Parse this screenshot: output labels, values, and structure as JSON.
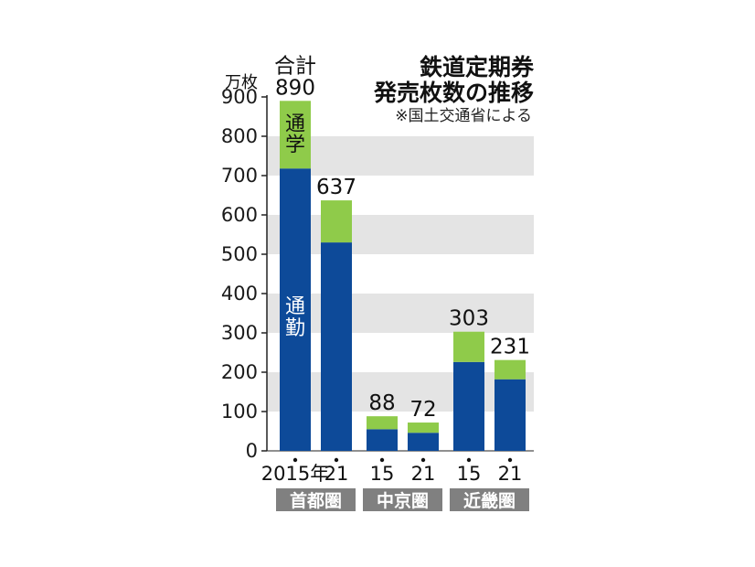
{
  "chart_data": {
    "type": "bar",
    "stacked": true,
    "title": [
      "鉄道定期券",
      "発売枚数の推移"
    ],
    "source_note": "※国土交通省による",
    "unit": "万枚",
    "ylim": [
      0,
      900
    ],
    "yticks": [
      "0",
      "100",
      "200",
      "300",
      "400",
      "500",
      "600",
      "700",
      "800",
      "900"
    ],
    "total_prefix": "合計",
    "categories": [
      "2015年",
      "21",
      "15",
      "21",
      "15",
      "21"
    ],
    "groups": [
      {
        "label": "首都圏",
        "span": [
          0,
          1
        ]
      },
      {
        "label": "中京圏",
        "span": [
          2,
          3
        ]
      },
      {
        "label": "近畿圏",
        "span": [
          4,
          5
        ]
      }
    ],
    "series": [
      {
        "name": "通勤",
        "values": [
          718,
          530,
          55,
          46,
          226,
          182
        ]
      },
      {
        "name": "通学",
        "values": [
          172,
          107,
          33,
          26,
          77,
          49
        ]
      }
    ],
    "totals": [
      "890",
      "637",
      "88",
      "72",
      "303",
      "231"
    ],
    "grid": "alternating-bands",
    "colors": {
      "commute": "#0d4a99",
      "school": "#8fcb4a",
      "band": "#e4e4e4",
      "region_bg": "#808080",
      "axis": "#222222"
    }
  }
}
